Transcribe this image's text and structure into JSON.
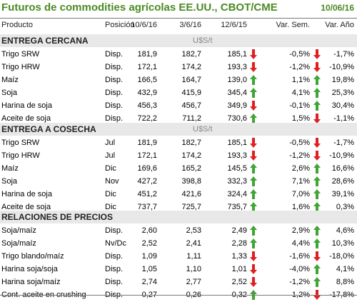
{
  "title": "Futuros de commodities agrícolas EE.UU., CBOT/CME",
  "date": "10/06/16",
  "headers": {
    "product": "Producto",
    "position": "Posición",
    "d1": "10/6/16",
    "d2": "3/6/16",
    "d3": "12/6/15",
    "sem": "Var. Sem.",
    "ano": "Var. Año"
  },
  "colors": {
    "title": "#4a8a22",
    "up": "#3fa535",
    "down": "#e02020",
    "section_bg": "#e8e8e8"
  },
  "sections": [
    {
      "title": "ENTREGA CERCANA",
      "unit": "U$S/t",
      "rows": [
        {
          "name": "Trigo SRW",
          "pos": "Disp.",
          "a": "181,9",
          "b": "182,7",
          "c": "185,1",
          "arr1": "down",
          "sem": "-0,5%",
          "arr2": "down",
          "ano": "-1,7%"
        },
        {
          "name": "Trigo HRW",
          "pos": "Disp.",
          "a": "172,1",
          "b": "174,2",
          "c": "193,3",
          "arr1": "down",
          "sem": "-1,2%",
          "arr2": "down",
          "ano": "-10,9%"
        },
        {
          "name": "Maíz",
          "pos": "Disp.",
          "a": "166,5",
          "b": "164,7",
          "c": "139,0",
          "arr1": "up",
          "sem": "1,1%",
          "arr2": "up",
          "ano": "19,8%"
        },
        {
          "name": "Soja",
          "pos": "Disp.",
          "a": "432,9",
          "b": "415,9",
          "c": "345,4",
          "arr1": "up",
          "sem": "4,1%",
          "arr2": "up",
          "ano": "25,3%"
        },
        {
          "name": "Harina de soja",
          "pos": "Disp.",
          "a": "456,3",
          "b": "456,7",
          "c": "349,9",
          "arr1": "down",
          "sem": "-0,1%",
          "arr2": "up",
          "ano": "30,4%"
        },
        {
          "name": "Aceite de soja",
          "pos": "Disp.",
          "a": "722,2",
          "b": "711,2",
          "c": "730,6",
          "arr1": "up",
          "sem": "1,5%",
          "arr2": "down",
          "ano": "-1,1%"
        }
      ]
    },
    {
      "title": "ENTREGA A COSECHA",
      "unit": "U$S/t",
      "rows": [
        {
          "name": "Trigo SRW",
          "pos": "Jul",
          "a": "181,9",
          "b": "182,7",
          "c": "185,1",
          "arr1": "down",
          "sem": "-0,5%",
          "arr2": "down",
          "ano": "-1,7%"
        },
        {
          "name": "Trigo HRW",
          "pos": "Jul",
          "a": "172,1",
          "b": "174,2",
          "c": "193,3",
          "arr1": "down",
          "sem": "-1,2%",
          "arr2": "down",
          "ano": "-10,9%"
        },
        {
          "name": "Maíz",
          "pos": "Dic",
          "a": "169,6",
          "b": "165,2",
          "c": "145,5",
          "arr1": "up",
          "sem": "2,6%",
          "arr2": "up",
          "ano": "16,6%"
        },
        {
          "name": "Soja",
          "pos": "Nov",
          "a": "427,2",
          "b": "398,8",
          "c": "332,3",
          "arr1": "up",
          "sem": "7,1%",
          "arr2": "up",
          "ano": "28,6%"
        },
        {
          "name": "Harina de soja",
          "pos": "Dic",
          "a": "451,2",
          "b": "421,6",
          "c": "324,4",
          "arr1": "up",
          "sem": "7,0%",
          "arr2": "up",
          "ano": "39,1%"
        },
        {
          "name": "Aceite de soja",
          "pos": "Dic",
          "a": "737,7",
          "b": "725,7",
          "c": "735,7",
          "arr1": "up",
          "sem": "1,6%",
          "arr2": "up",
          "ano": "0,3%"
        }
      ]
    },
    {
      "title": "RELACIONES DE PRECIOS",
      "unit": "",
      "rows": [
        {
          "name": "Soja/maíz",
          "pos": "Disp.",
          "a": "2,60",
          "b": "2,53",
          "c": "2,49",
          "arr1": "up",
          "sem": "2,9%",
          "arr2": "up",
          "ano": "4,6%"
        },
        {
          "name": "Soja/maíz",
          "pos": "Nv/Dc",
          "a": "2,52",
          "b": "2,41",
          "c": "2,28",
          "arr1": "up",
          "sem": "4,4%",
          "arr2": "up",
          "ano": "10,3%"
        },
        {
          "name": "Trigo blando/maíz",
          "pos": "Disp.",
          "a": "1,09",
          "b": "1,11",
          "c": "1,33",
          "arr1": "down",
          "sem": "-1,6%",
          "arr2": "down",
          "ano": "-18,0%"
        },
        {
          "name": "Harina soja/soja",
          "pos": "Disp.",
          "a": "1,05",
          "b": "1,10",
          "c": "1,01",
          "arr1": "down",
          "sem": "-4,0%",
          "arr2": "up",
          "ano": "4,1%"
        },
        {
          "name": "Harina soja/maíz",
          "pos": "Disp.",
          "a": "2,74",
          "b": "2,77",
          "c": "2,52",
          "arr1": "down",
          "sem": "-1,2%",
          "arr2": "up",
          "ano": "8,8%"
        },
        {
          "name": "Cont. aceite en crushing",
          "pos": "Disp.",
          "a": "0,27",
          "b": "0,26",
          "c": "0,32",
          "arr1": "up",
          "sem": "1,2%",
          "arr2": "down",
          "ano": "-17,8%"
        }
      ]
    }
  ]
}
